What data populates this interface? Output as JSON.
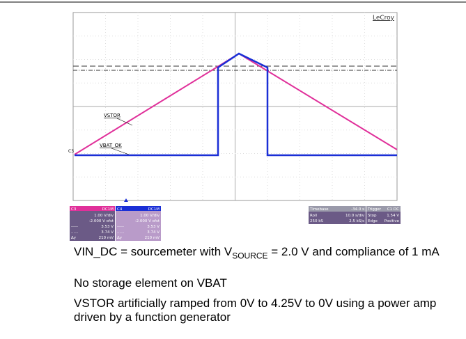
{
  "scope": {
    "brand": "LeCroy",
    "trace_labels": {
      "vstor": "VSTOR",
      "vbat_ok": "VBAT_OK",
      "channel": "C3"
    },
    "channels": [
      {
        "name": "C3",
        "coupling": "DC1M",
        "values": [
          "1.00 V/div",
          "-2.000 V ofst",
          "3.53 V",
          "3.74 V",
          "210 mV"
        ],
        "markers": [
          "-----",
          "......",
          "Δy"
        ]
      },
      {
        "name": "C4",
        "coupling": "DC1M",
        "values": [
          "1.00 V/div",
          "-2.000 V ofst",
          "3.53 V",
          "3.74 V",
          "210 mV"
        ],
        "markers": [
          "-----",
          "......",
          "Δy"
        ]
      }
    ],
    "timebase": {
      "title": "Timebase",
      "value": "-34.0 s",
      "rows": [
        [
          "Roll",
          "10.0 s/div"
        ],
        [
          "250 kS",
          "2.5 kS/s"
        ]
      ]
    },
    "trigger": {
      "title": "Trigger",
      "value": "C1 DC",
      "rows": [
        [
          "Stop",
          "1.54 V"
        ],
        [
          "Edge",
          "Positive"
        ]
      ]
    }
  },
  "caption": {
    "line1": {
      "before": "VIN_DC = sourcemeter with V",
      "sub": "SOURCE",
      "after": " = 2.0 V and compliance of 1 mA"
    },
    "line2": "No storage element on VBAT",
    "line3": "VSTOR artificially ramped from 0V to 4.25V to 0V using a power amp driven by a function generator"
  }
}
